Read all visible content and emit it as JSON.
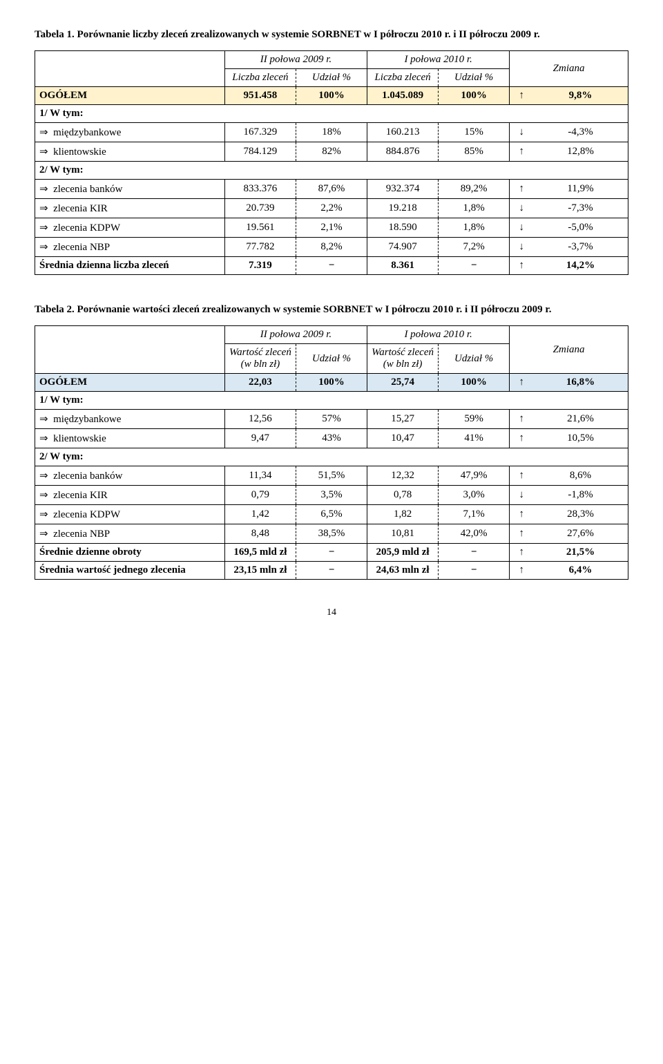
{
  "table1": {
    "caption": "Tabela 1. Porównanie liczby zleceń zrealizowanych w systemie SORBNET w I półroczu 2010 r. i II półroczu 2009 r.",
    "period_a": "II połowa 2009 r.",
    "period_b": "I połowa 2010 r.",
    "col_a1": "Liczba zleceń",
    "col_a2": "Udział %",
    "col_b1": "Liczba zleceń",
    "col_b2": "Udział %",
    "col_change": "Zmiana",
    "total_label": "OGÓŁEM",
    "total": {
      "va": "951.458",
      "pa": "100%",
      "vb": "1.045.089",
      "pb": "100%",
      "arr": "↑",
      "chg": "9,8%"
    },
    "sec1": "1/ W tym:",
    "rows1": [
      {
        "label": "międzybankowe",
        "va": "167.329",
        "pa": "18%",
        "vb": "160.213",
        "pb": "15%",
        "arr": "↓",
        "chg": "-4,3%"
      },
      {
        "label": "klientowskie",
        "va": "784.129",
        "pa": "82%",
        "vb": "884.876",
        "pb": "85%",
        "arr": "↑",
        "chg": "12,8%"
      }
    ],
    "sec2": "2/ W tym:",
    "rows2": [
      {
        "label": "zlecenia banków",
        "va": "833.376",
        "pa": "87,6%",
        "vb": "932.374",
        "pb": "89,2%",
        "arr": "↑",
        "chg": "11,9%"
      },
      {
        "label": "zlecenia KIR",
        "va": "20.739",
        "pa": "2,2%",
        "vb": "19.218",
        "pb": "1,8%",
        "arr": "↓",
        "chg": "-7,3%"
      },
      {
        "label": "zlecenia KDPW",
        "va": "19.561",
        "pa": "2,1%",
        "vb": "18.590",
        "pb": "1,8%",
        "arr": "↓",
        "chg": "-5,0%"
      },
      {
        "label": "zlecenia NBP",
        "va": "77.782",
        "pa": "8,2%",
        "vb": "74.907",
        "pb": "7,2%",
        "arr": "↓",
        "chg": "-3,7%"
      }
    ],
    "footer_label": "Średnia dzienna liczba zleceń",
    "footer": {
      "va": "7.319",
      "pa": "−",
      "vb": "8.361",
      "pb": "−",
      "arr": "↑",
      "chg": "14,2%"
    }
  },
  "table2": {
    "caption": "Tabela 2. Porównanie wartości zleceń zrealizowanych w systemie SORBNET w I półroczu 2010 r. i II półroczu 2009 r.",
    "period_a": "II połowa 2009 r.",
    "period_b": "I połowa 2010 r.",
    "col_a1": "Wartość zleceń (w bln zł)",
    "col_a2": "Udział %",
    "col_b1": "Wartość zleceń (w bln zł)",
    "col_b2": "Udział %",
    "col_change": "Zmiana",
    "total_label": "OGÓŁEM",
    "total": {
      "va": "22,03",
      "pa": "100%",
      "vb": "25,74",
      "pb": "100%",
      "arr": "↑",
      "chg": "16,8%"
    },
    "sec1": "1/ W tym:",
    "rows1": [
      {
        "label": "międzybankowe",
        "va": "12,56",
        "pa": "57%",
        "vb": "15,27",
        "pb": "59%",
        "arr": "↑",
        "chg": "21,6%"
      },
      {
        "label": "klientowskie",
        "va": "9,47",
        "pa": "43%",
        "vb": "10,47",
        "pb": "41%",
        "arr": "↑",
        "chg": "10,5%"
      }
    ],
    "sec2": "2/ W tym:",
    "rows2": [
      {
        "label": "zlecenia banków",
        "va": "11,34",
        "pa": "51,5%",
        "vb": "12,32",
        "pb": "47,9%",
        "arr": "↑",
        "chg": "8,6%"
      },
      {
        "label": "zlecenia KIR",
        "va": "0,79",
        "pa": "3,5%",
        "vb": "0,78",
        "pb": "3,0%",
        "arr": "↓",
        "chg": "-1,8%"
      },
      {
        "label": "zlecenia KDPW",
        "va": "1,42",
        "pa": "6,5%",
        "vb": "1,82",
        "pb": "7,1%",
        "arr": "↑",
        "chg": "28,3%"
      },
      {
        "label": "zlecenia NBP",
        "va": "8,48",
        "pa": "38,5%",
        "vb": "10,81",
        "pb": "42,0%",
        "arr": "↑",
        "chg": "27,6%"
      }
    ],
    "footer1_label": "Średnie dzienne obroty",
    "footer1": {
      "va": "169,5 mld zł",
      "pa": "−",
      "vb": "205,9 mld zł",
      "pb": "−",
      "arr": "↑",
      "chg": "21,5%"
    },
    "footer2_label": "Średnia wartość jednego zlecenia",
    "footer2": {
      "va": "23,15 mln zł",
      "pa": "−",
      "vb": "24,63 mln zł",
      "pb": "−",
      "arr": "↑",
      "chg": "6,4%"
    }
  },
  "page_number": "14"
}
